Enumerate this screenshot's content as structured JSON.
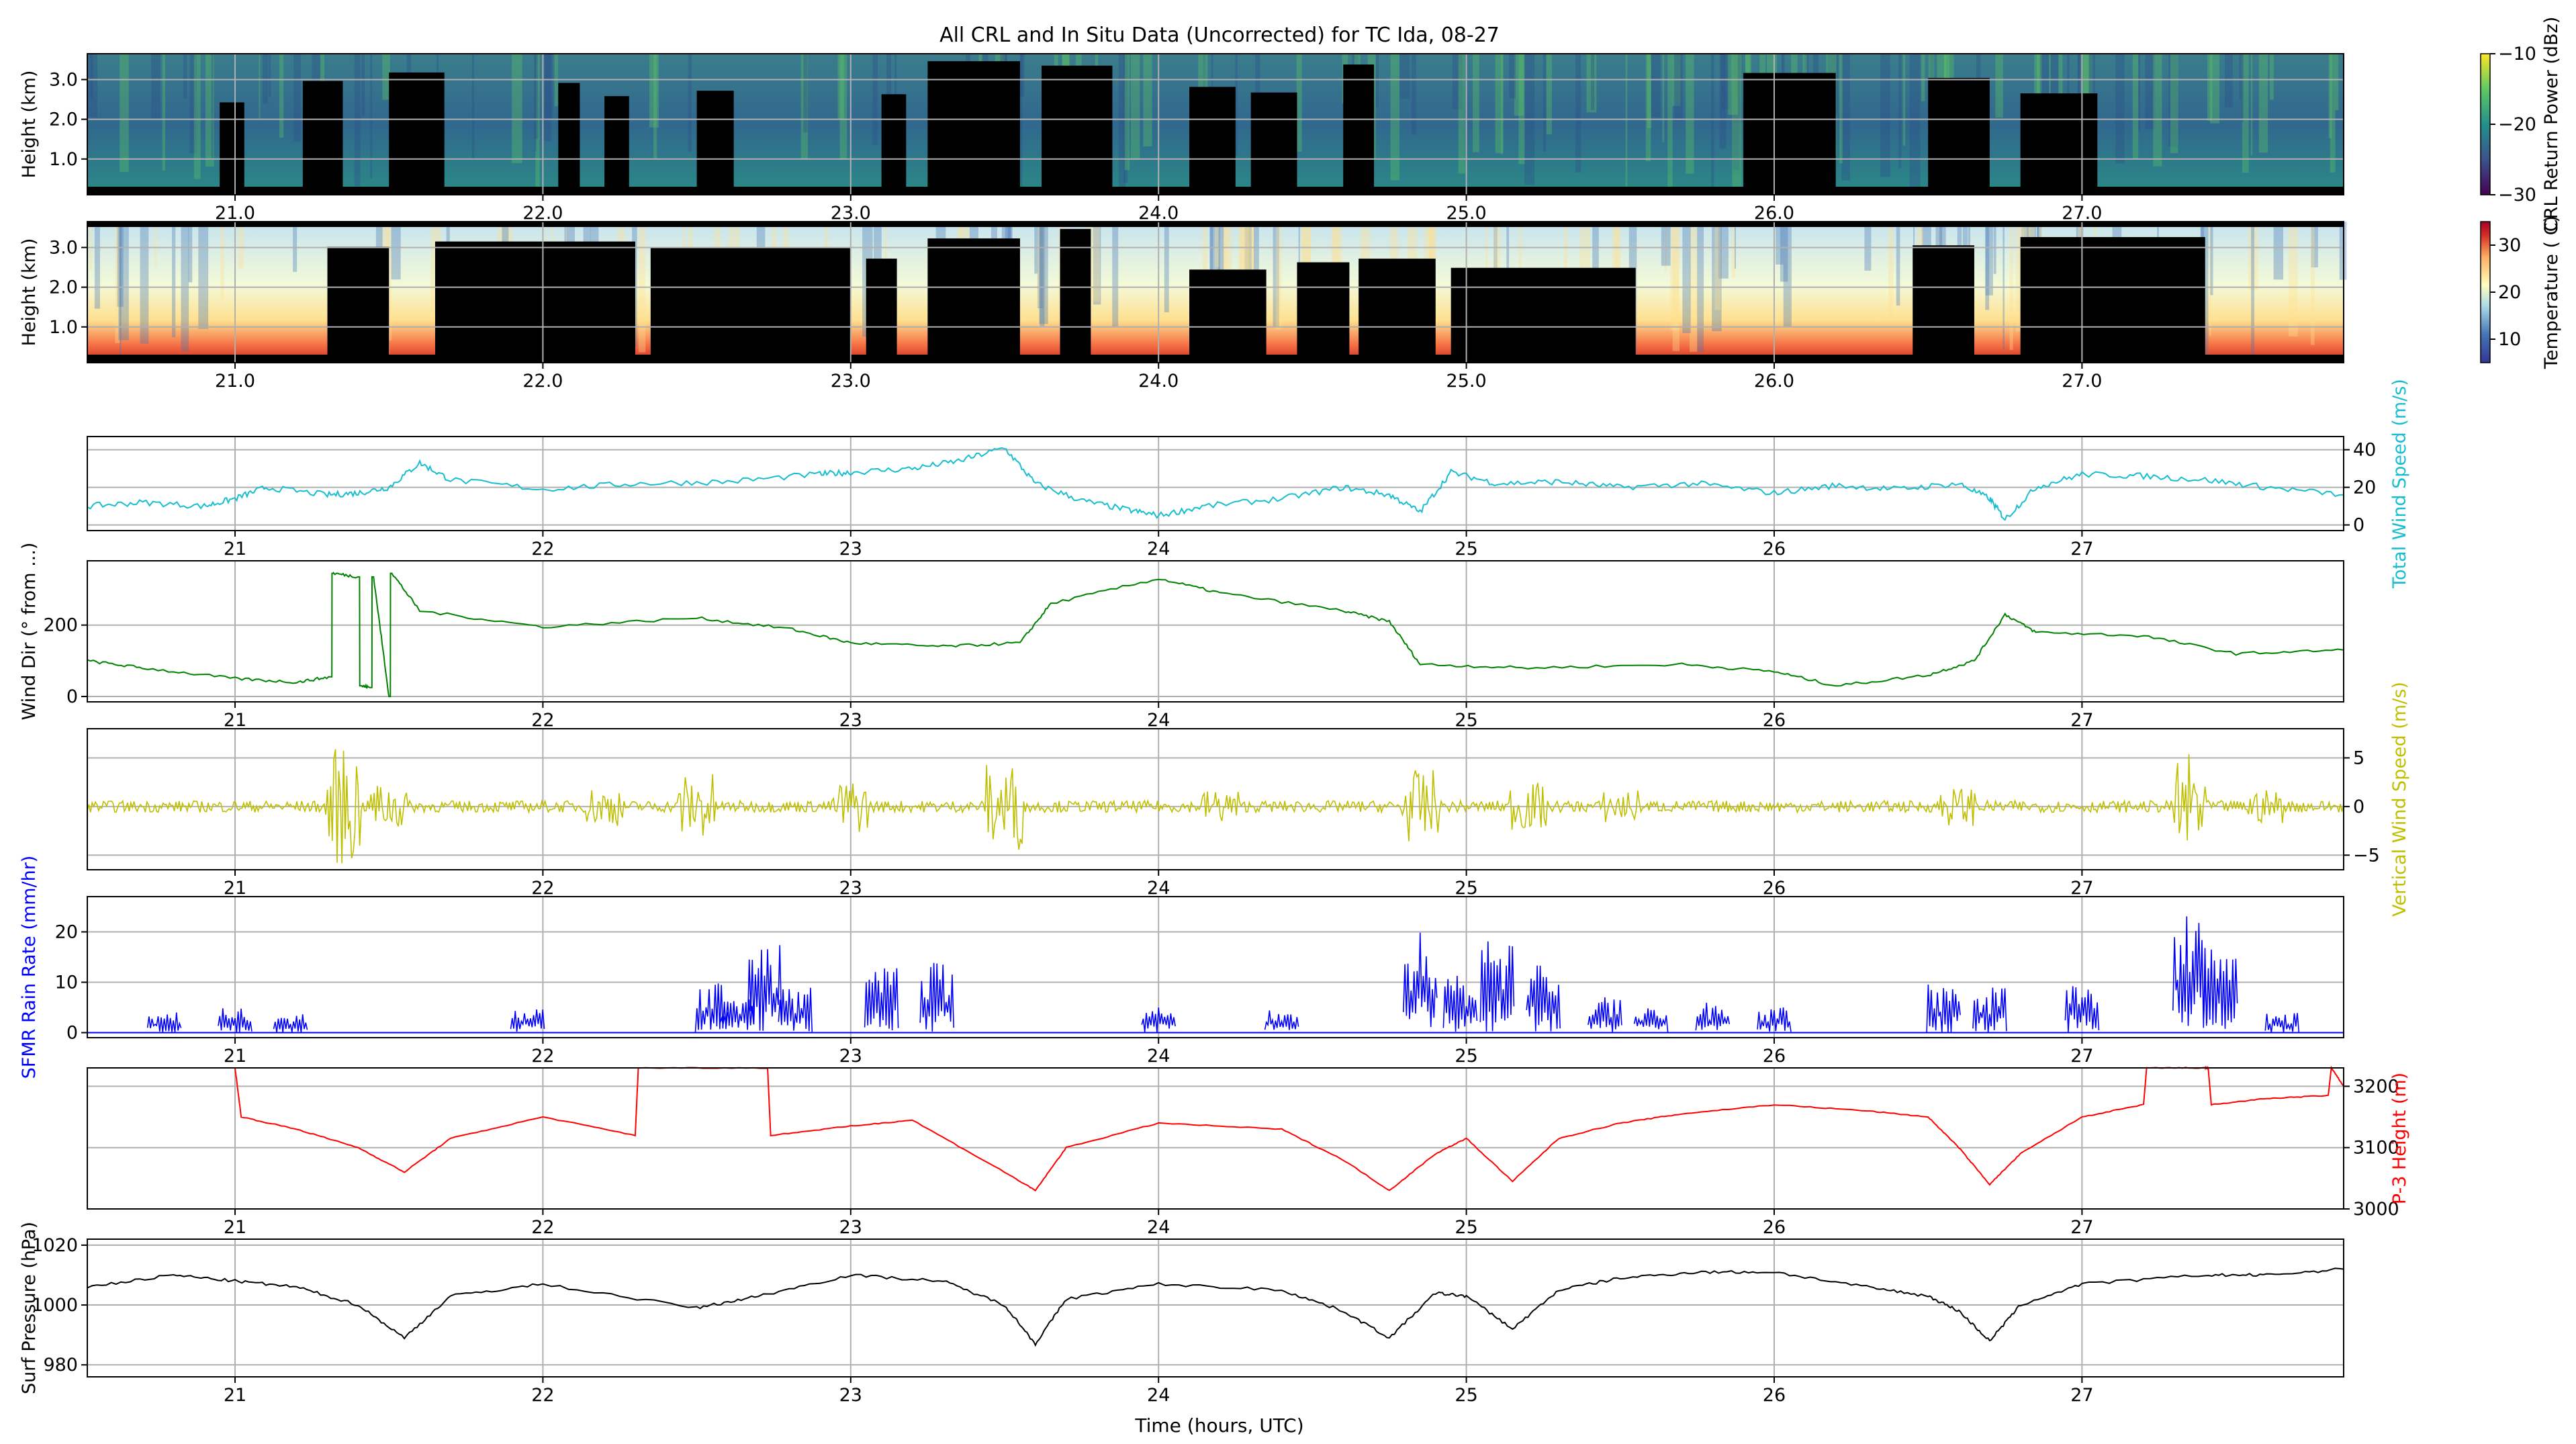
{
  "figure": {
    "title": "All CRL and In Situ Data (Uncorrected) for TC Ida, 08-27",
    "xlabel": "Time (hours, UTC)"
  },
  "colors": {
    "wind_speed": "#17becf",
    "wind_dir": "#008000",
    "vertical_wind": "#bfbf00",
    "rain": "#0000ff",
    "p3_height": "#ff0000",
    "pressure": "#000000"
  },
  "chart_data": [
    {
      "type": "heatmap",
      "name": "crl-power",
      "ylabel": "Height (km)",
      "yticks": [
        "1.0",
        "2.0",
        "3.0"
      ],
      "xticks": [
        "21.0",
        "22.0",
        "23.0",
        "24.0",
        "25.0",
        "26.0",
        "27.0"
      ],
      "xlim": [
        20.52,
        27.85
      ],
      "ylim": [
        0.1,
        3.65
      ],
      "colorbar": {
        "label": "CRL Return Power (dBz)",
        "ticks": [
          "−10",
          "−20",
          "−30"
        ],
        "range": [
          -30,
          -10
        ],
        "colormap": "viridis"
      },
      "masked_spans": [
        [
          20.95,
          21.03
        ],
        [
          21.22,
          21.35
        ],
        [
          21.5,
          21.68
        ],
        [
          22.05,
          22.12
        ],
        [
          22.2,
          22.28
        ],
        [
          22.5,
          22.62
        ],
        [
          23.1,
          23.18
        ],
        [
          23.25,
          23.55
        ],
        [
          23.62,
          23.85
        ],
        [
          24.1,
          24.25
        ],
        [
          24.3,
          24.45
        ],
        [
          24.6,
          24.7
        ],
        [
          25.9,
          26.2
        ],
        [
          26.5,
          26.7
        ],
        [
          26.8,
          27.05
        ]
      ]
    },
    {
      "type": "heatmap",
      "name": "temperature",
      "ylabel": "Height (km)",
      "yticks": [
        "1.0",
        "2.0",
        "3.0"
      ],
      "xticks": [
        "21.0",
        "22.0",
        "23.0",
        "24.0",
        "25.0",
        "26.0",
        "27.0"
      ],
      "xlim": [
        20.52,
        27.85
      ],
      "ylim": [
        0.1,
        3.65
      ],
      "colorbar": {
        "label": "Temperature ( C)",
        "ticks": [
          "10",
          "20",
          "30"
        ],
        "range": [
          5,
          35
        ],
        "colormap": "RdYlBu_r"
      },
      "masked_spans": [
        [
          21.3,
          21.5
        ],
        [
          21.65,
          22.3
        ],
        [
          22.35,
          23.0
        ],
        [
          23.05,
          23.15
        ],
        [
          23.25,
          23.55
        ],
        [
          23.68,
          23.78
        ],
        [
          24.1,
          24.35
        ],
        [
          24.45,
          24.62
        ],
        [
          24.65,
          24.9
        ],
        [
          24.95,
          25.55
        ],
        [
          26.45,
          26.65
        ],
        [
          26.8,
          27.4
        ]
      ]
    },
    {
      "type": "line",
      "name": "wind-speed",
      "ylabel": "Total Wind Speed (m/s)",
      "yticks": [
        "0",
        "20",
        "40"
      ],
      "xticks": [
        "21",
        "22",
        "23",
        "24",
        "25",
        "26",
        "27"
      ],
      "xlim": [
        20.52,
        27.85
      ],
      "ylim": [
        -3,
        47
      ],
      "x": [
        20.52,
        20.7,
        20.9,
        21.0,
        21.1,
        21.3,
        21.4,
        21.5,
        21.6,
        21.7,
        22.0,
        22.3,
        22.6,
        22.9,
        23.0,
        23.2,
        23.35,
        23.5,
        23.6,
        23.75,
        23.9,
        24.0,
        24.15,
        24.4,
        24.6,
        24.75,
        24.85,
        24.95,
        25.1,
        25.3,
        25.5,
        25.75,
        26.0,
        26.2,
        26.4,
        26.6,
        26.7,
        26.75,
        26.85,
        27.0,
        27.2,
        27.4,
        27.6,
        27.85
      ],
      "y": [
        10,
        12,
        10,
        14,
        20,
        16,
        17,
        20,
        33,
        24,
        19,
        22,
        23,
        27,
        28,
        30,
        34,
        41,
        22,
        13,
        8,
        5,
        10,
        14,
        20,
        16,
        7,
        28,
        22,
        23,
        20,
        22,
        17,
        21,
        19,
        22,
        14,
        3,
        20,
        27,
        26,
        24,
        20,
        16
      ]
    },
    {
      "type": "line",
      "name": "wind-direction",
      "ylabel": "Wind Dir (° from ...)",
      "yticks": [
        "0",
        "200"
      ],
      "xticks": [
        "21",
        "22",
        "23",
        "24",
        "25",
        "26",
        "27"
      ],
      "xlim": [
        20.52,
        27.85
      ],
      "ylim": [
        -15,
        380
      ],
      "x": [
        20.52,
        20.7,
        21.0,
        21.2,
        21.31,
        21.32,
        21.4,
        21.41,
        21.44,
        21.45,
        21.5,
        21.51,
        21.6,
        22.0,
        22.5,
        22.8,
        23.0,
        23.3,
        23.55,
        23.65,
        24.0,
        24.2,
        24.6,
        24.75,
        24.85,
        25.2,
        25.7,
        26.0,
        26.2,
        26.5,
        26.65,
        26.75,
        26.85,
        27.2,
        27.5,
        27.85
      ],
      "y": [
        100,
        80,
        50,
        40,
        55,
        345,
        335,
        30,
        25,
        335,
        0,
        345,
        240,
        195,
        220,
        190,
        150,
        140,
        150,
        260,
        330,
        290,
        240,
        210,
        90,
        80,
        90,
        70,
        30,
        60,
        100,
        230,
        180,
        170,
        120,
        130
      ]
    },
    {
      "type": "line",
      "name": "vertical-wind",
      "ylabel": "Vertical Wind Speed (m/s)",
      "yticks": [
        "−5",
        "0",
        "5"
      ],
      "xticks": [
        "21",
        "22",
        "23",
        "24",
        "25",
        "26",
        "27"
      ],
      "xlim": [
        20.52,
        27.85
      ],
      "ylim": [
        -6.5,
        8
      ],
      "spikes": [
        [
          21.35,
          6,
          -6
        ],
        [
          21.5,
          3,
          -2
        ],
        [
          22.2,
          2,
          -2
        ],
        [
          22.5,
          5,
          -2
        ],
        [
          23.0,
          3,
          -2.5
        ],
        [
          23.5,
          7,
          -2
        ],
        [
          24.2,
          2,
          -1.5
        ],
        [
          24.85,
          3,
          -4.5
        ],
        [
          25.2,
          3,
          -2
        ],
        [
          25.5,
          2,
          -1.5
        ],
        [
          26.6,
          2,
          -2
        ],
        [
          27.35,
          7,
          -4
        ],
        [
          27.6,
          2,
          -1.5
        ]
      ]
    },
    {
      "type": "line",
      "name": "rain-rate",
      "ylabel": "SFMR Rain Rate (mm/hr)",
      "yticks": [
        "0",
        "10",
        "20"
      ],
      "xticks": [
        "21",
        "22",
        "23",
        "24",
        "25",
        "26",
        "27"
      ],
      "xlim": [
        20.52,
        27.85
      ],
      "ylim": [
        -1,
        27
      ],
      "events": [
        [
          20.77,
          4
        ],
        [
          21.0,
          5
        ],
        [
          21.18,
          4
        ],
        [
          21.95,
          5
        ],
        [
          22.55,
          10
        ],
        [
          22.63,
          7
        ],
        [
          22.72,
          18
        ],
        [
          22.82,
          9
        ],
        [
          23.1,
          13
        ],
        [
          23.28,
          15
        ],
        [
          24.0,
          5
        ],
        [
          24.4,
          5
        ],
        [
          24.85,
          20
        ],
        [
          24.98,
          12
        ],
        [
          25.1,
          19
        ],
        [
          25.25,
          15
        ],
        [
          25.45,
          7
        ],
        [
          25.6,
          5
        ],
        [
          25.8,
          6
        ],
        [
          26.0,
          5
        ],
        [
          26.55,
          10
        ],
        [
          26.7,
          9
        ],
        [
          27.0,
          10
        ],
        [
          27.35,
          25
        ],
        [
          27.45,
          17
        ],
        [
          27.65,
          4
        ]
      ]
    },
    {
      "type": "line",
      "name": "p3-height",
      "ylabel": "P-3 Height (m)",
      "yticks": [
        "3000",
        "3100",
        "3200"
      ],
      "xticks": [
        "21",
        "22",
        "23",
        "24",
        "25",
        "26",
        "27"
      ],
      "xlim": [
        20.52,
        27.85
      ],
      "ylim": [
        3000,
        3230
      ],
      "x": [
        21.0,
        21.02,
        21.2,
        21.4,
        21.55,
        21.7,
        22.0,
        22.3,
        22.31,
        22.73,
        22.74,
        23.0,
        23.2,
        23.5,
        23.6,
        23.7,
        24.0,
        24.4,
        24.6,
        24.75,
        24.9,
        25.0,
        25.15,
        25.3,
        25.5,
        25.7,
        26.0,
        26.3,
        26.5,
        26.6,
        26.7,
        26.8,
        27.0,
        27.2,
        27.21,
        27.4,
        27.41,
        27.42,
        27.6,
        27.8,
        27.81,
        27.85
      ],
      "y": [
        3230,
        3150,
        3130,
        3100,
        3060,
        3115,
        3150,
        3120,
        3230,
        3230,
        3120,
        3135,
        3145,
        3060,
        3030,
        3100,
        3140,
        3130,
        3080,
        3030,
        3090,
        3115,
        3045,
        3115,
        3140,
        3155,
        3170,
        3160,
        3150,
        3100,
        3040,
        3090,
        3150,
        3170,
        3230,
        3230,
        3230,
        3170,
        3180,
        3185,
        3230,
        3200
      ]
    },
    {
      "type": "line",
      "name": "surface-pressure",
      "ylabel": "Surf Pressure (hPa)",
      "yticks": [
        "980",
        "1000",
        "1020"
      ],
      "xticks": [
        "21",
        "22",
        "23",
        "24",
        "25",
        "26",
        "27"
      ],
      "xlim": [
        20.52,
        27.85
      ],
      "ylim": [
        976,
        1022
      ],
      "x": [
        20.52,
        20.8,
        21.0,
        21.2,
        21.4,
        21.55,
        21.7,
        22.0,
        22.5,
        22.7,
        23.0,
        23.3,
        23.5,
        23.6,
        23.7,
        24.0,
        24.4,
        24.6,
        24.75,
        24.9,
        25.0,
        25.15,
        25.3,
        25.5,
        25.75,
        26.0,
        26.3,
        26.5,
        26.6,
        26.7,
        26.8,
        27.0,
        27.4,
        27.6,
        27.85
      ],
      "y": [
        1006,
        1010,
        1008,
        1006,
        1000,
        989,
        1003,
        1007,
        999,
        1003,
        1010,
        1008,
        1000,
        987,
        1002,
        1007,
        1005,
        998,
        989,
        1004,
        1003,
        992,
        1005,
        1009,
        1011,
        1011,
        1006,
        1003,
        998,
        988,
        1000,
        1007,
        1010,
        1010,
        1012
      ]
    }
  ]
}
